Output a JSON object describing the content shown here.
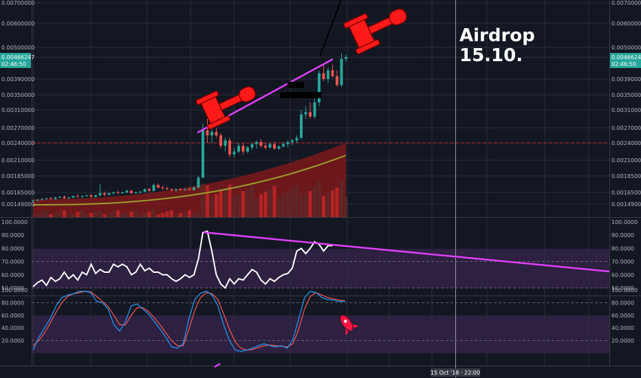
{
  "annotation": {
    "line1": "Airdrop",
    "line2": "15.10."
  },
  "crosshair": {
    "label": "15 Oct '18 · 22:00"
  },
  "price_tag": {
    "value": "0.00466247",
    "countdown": "02:46:50"
  },
  "colors": {
    "background": "#131722",
    "grid": "#2a2e39",
    "up": "#26a69a",
    "down": "#ef5350",
    "trend": "#e040fb",
    "rsi_line": "#ffffff",
    "stoch_k": "#2196f3",
    "stoch_d": "#ef5350",
    "ma": "#9aa02e",
    "volume_area": "#8b1a1a",
    "support": "#c62828",
    "gavel": "#ff1a1a"
  },
  "chart_data": [
    {
      "type": "candlestick",
      "title": "",
      "y_ticks": [
        "0.00700000",
        "0.00600000",
        "0.00500000",
        "0.00390000",
        "0.00350000",
        "0.00310000",
        "0.00270000",
        "0.00240000",
        "0.00210000",
        "0.00185000",
        "0.00165000",
        "0.00149000"
      ],
      "last_price": 0.00466247,
      "support_level": 0.0024,
      "ohlc": [
        [
          0.00153,
          0.00155,
          0.00152,
          0.00154
        ],
        [
          0.00154,
          0.00156,
          0.00153,
          0.00155
        ],
        [
          0.00155,
          0.00157,
          0.00154,
          0.00156
        ],
        [
          0.00156,
          0.00158,
          0.00155,
          0.00157
        ],
        [
          0.00157,
          0.00159,
          0.00155,
          0.00156
        ],
        [
          0.00156,
          0.00159,
          0.00155,
          0.00158
        ],
        [
          0.00158,
          0.0016,
          0.00157,
          0.00159
        ],
        [
          0.00159,
          0.00161,
          0.00156,
          0.00157
        ],
        [
          0.00157,
          0.00159,
          0.00156,
          0.00158
        ],
        [
          0.00158,
          0.00161,
          0.00157,
          0.0016
        ],
        [
          0.0016,
          0.00163,
          0.00158,
          0.00159
        ],
        [
          0.00159,
          0.00161,
          0.00157,
          0.0016
        ],
        [
          0.0016,
          0.00162,
          0.00159,
          0.00161
        ],
        [
          0.00161,
          0.00163,
          0.00158,
          0.00159
        ],
        [
          0.00159,
          0.00162,
          0.00158,
          0.00161
        ],
        [
          0.00161,
          0.00175,
          0.0016,
          0.00164
        ],
        [
          0.00164,
          0.00166,
          0.0016,
          0.00162
        ],
        [
          0.00162,
          0.00165,
          0.00161,
          0.00164
        ],
        [
          0.00164,
          0.00166,
          0.00162,
          0.00165
        ],
        [
          0.00165,
          0.00167,
          0.00163,
          0.00164
        ],
        [
          0.00164,
          0.00166,
          0.00163,
          0.00165
        ],
        [
          0.00165,
          0.00168,
          0.00164,
          0.00167
        ],
        [
          0.00167,
          0.00168,
          0.00163,
          0.00164
        ],
        [
          0.00164,
          0.00166,
          0.00163,
          0.00165
        ],
        [
          0.00165,
          0.00167,
          0.00164,
          0.00166
        ],
        [
          0.00166,
          0.0017,
          0.00165,
          0.00169
        ],
        [
          0.00169,
          0.00171,
          0.00166,
          0.00167
        ],
        [
          0.00167,
          0.00176,
          0.00166,
          0.00174
        ],
        [
          0.00174,
          0.00176,
          0.0017,
          0.00171
        ],
        [
          0.00171,
          0.00173,
          0.00168,
          0.0017
        ],
        [
          0.0017,
          0.00172,
          0.00168,
          0.00169
        ],
        [
          0.00169,
          0.0017,
          0.00166,
          0.00168
        ],
        [
          0.00168,
          0.0017,
          0.00166,
          0.00169
        ],
        [
          0.00169,
          0.0017,
          0.00167,
          0.00168
        ],
        [
          0.00168,
          0.0017,
          0.00167,
          0.00169
        ],
        [
          0.00169,
          0.00171,
          0.00167,
          0.00168
        ],
        [
          0.00168,
          0.00172,
          0.00167,
          0.00171
        ],
        [
          0.00171,
          0.00185,
          0.0017,
          0.00183
        ],
        [
          0.00183,
          0.0028,
          0.00182,
          0.00265
        ],
        [
          0.00265,
          0.0029,
          0.0024,
          0.00255
        ],
        [
          0.00255,
          0.0027,
          0.0024,
          0.00262
        ],
        [
          0.00262,
          0.0027,
          0.0025,
          0.00255
        ],
        [
          0.00255,
          0.0026,
          0.0023,
          0.00235
        ],
        [
          0.00235,
          0.0025,
          0.00225,
          0.00245
        ],
        [
          0.00245,
          0.0025,
          0.00215,
          0.0022
        ],
        [
          0.0022,
          0.00232,
          0.00215,
          0.00225
        ],
        [
          0.00225,
          0.0024,
          0.00222,
          0.00235
        ],
        [
          0.00235,
          0.0024,
          0.0022,
          0.00225
        ],
        [
          0.00225,
          0.00235,
          0.00222,
          0.00232
        ],
        [
          0.00232,
          0.0024,
          0.00228,
          0.00238
        ],
        [
          0.00238,
          0.00245,
          0.0023,
          0.00242
        ],
        [
          0.00242,
          0.00248,
          0.00232,
          0.00235
        ],
        [
          0.00235,
          0.0024,
          0.00228,
          0.00232
        ],
        [
          0.00232,
          0.0024,
          0.0023,
          0.00238
        ],
        [
          0.00238,
          0.00242,
          0.00228,
          0.0023
        ],
        [
          0.0023,
          0.00236,
          0.00228,
          0.00234
        ],
        [
          0.00234,
          0.00242,
          0.00232,
          0.00238
        ],
        [
          0.00238,
          0.00245,
          0.00232,
          0.00242
        ],
        [
          0.00242,
          0.00248,
          0.00236,
          0.00245
        ],
        [
          0.00245,
          0.00255,
          0.0024,
          0.0025
        ],
        [
          0.0025,
          0.0031,
          0.00248,
          0.003
        ],
        [
          0.003,
          0.0032,
          0.0029,
          0.00305
        ],
        [
          0.00305,
          0.0033,
          0.0029,
          0.00295
        ],
        [
          0.00295,
          0.0034,
          0.0029,
          0.0033
        ],
        [
          0.0033,
          0.0042,
          0.0032,
          0.0041
        ],
        [
          0.0041,
          0.0044,
          0.00385,
          0.0039
        ],
        [
          0.0039,
          0.0043,
          0.0038,
          0.0042
        ],
        [
          0.0042,
          0.0044,
          0.00395,
          0.004
        ],
        [
          0.004,
          0.0042,
          0.0037,
          0.00375
        ],
        [
          0.00375,
          0.0048,
          0.0037,
          0.0046
        ],
        [
          0.0046,
          0.00475,
          0.0045,
          0.00466247
        ]
      ]
    },
    {
      "type": "line",
      "title": "",
      "y_ticks": [
        "100.0000",
        "90.0000",
        "80.0000",
        "70.0000",
        "60.0000",
        "50.0000"
      ],
      "upper_band": 70,
      "lower_band": 50,
      "series": [
        {
          "values": [
            51,
            54,
            56,
            52,
            58,
            55,
            57,
            62,
            57,
            60,
            56,
            62,
            60,
            68,
            61,
            64,
            62,
            62,
            68,
            66,
            68,
            66,
            60,
            62,
            68,
            63,
            65,
            62,
            62,
            60,
            60,
            57,
            55,
            57,
            60,
            58,
            60,
            72,
            92,
            93,
            78,
            60,
            53,
            50,
            57,
            53,
            57,
            56,
            60,
            64,
            62,
            56,
            53,
            57,
            55,
            58,
            60,
            61,
            65,
            78,
            80,
            76,
            80,
            85,
            83,
            78,
            82,
            82
          ]
        }
      ]
    },
    {
      "type": "line",
      "title": "",
      "y_ticks": [
        "100.0000",
        "80.0000",
        "60.0000",
        "40.0000",
        "20.0000"
      ],
      "upper_band": 80,
      "lower_band": 20,
      "series": [
        {
          "values": [
            5,
            25,
            40,
            55,
            75,
            88,
            92,
            94,
            98,
            98,
            96,
            82,
            80,
            70,
            45,
            35,
            50,
            75,
            78,
            70,
            62,
            50,
            38,
            25,
            10,
            8,
            15,
            55,
            85,
            95,
            98,
            92,
            75,
            45,
            20,
            5,
            3,
            5,
            8,
            12,
            15,
            12,
            10,
            12,
            8,
            22,
            55,
            88,
            98,
            96,
            88,
            85,
            84,
            82,
            82
          ]
        },
        {
          "values": [
            12,
            20,
            32,
            48,
            65,
            80,
            90,
            94,
            96,
            98,
            97,
            90,
            82,
            74,
            60,
            45,
            45,
            60,
            72,
            72,
            66,
            56,
            45,
            32,
            20,
            12,
            12,
            38,
            68,
            88,
            96,
            94,
            85,
            62,
            38,
            18,
            8,
            5,
            6,
            9,
            12,
            13,
            12,
            11,
            10,
            15,
            38,
            70,
            90,
            96,
            92,
            88,
            86,
            84,
            83
          ]
        }
      ]
    }
  ]
}
